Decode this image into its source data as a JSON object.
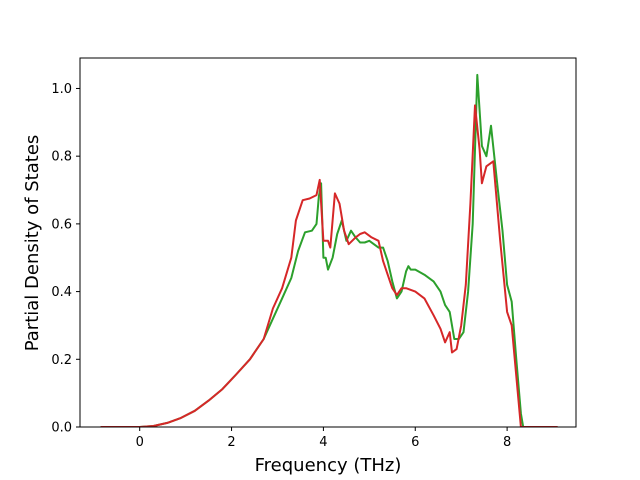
{
  "chart_data": {
    "type": "line",
    "title": "",
    "xlabel": "Frequency (THz)",
    "ylabel": "Partial Density of States",
    "xlim": [
      -1.3,
      9.5
    ],
    "ylim": [
      0.0,
      1.09
    ],
    "xticks": [
      0,
      2,
      4,
      6,
      8
    ],
    "yticks": [
      0.0,
      0.2,
      0.4,
      0.6,
      0.8,
      1.0
    ],
    "xtick_labels": [
      "0",
      "2",
      "4",
      "6",
      "8"
    ],
    "ytick_labels": [
      "0.0",
      "0.2",
      "0.4",
      "0.6",
      "0.8",
      "1.0"
    ],
    "grid": false,
    "series": [
      {
        "color": "#2ca02c",
        "points": [
          [
            -0.85,
            0.0
          ],
          [
            0.0,
            0.0
          ],
          [
            0.3,
            0.003
          ],
          [
            0.6,
            0.012
          ],
          [
            0.9,
            0.027
          ],
          [
            1.2,
            0.048
          ],
          [
            1.5,
            0.078
          ],
          [
            1.8,
            0.112
          ],
          [
            2.1,
            0.155
          ],
          [
            2.4,
            0.2
          ],
          [
            2.7,
            0.26
          ],
          [
            2.9,
            0.32
          ],
          [
            3.1,
            0.38
          ],
          [
            3.3,
            0.44
          ],
          [
            3.45,
            0.52
          ],
          [
            3.6,
            0.575
          ],
          [
            3.75,
            0.58
          ],
          [
            3.85,
            0.6
          ],
          [
            3.9,
            0.68
          ],
          [
            3.95,
            0.72
          ],
          [
            4.0,
            0.5
          ],
          [
            4.05,
            0.5
          ],
          [
            4.1,
            0.465
          ],
          [
            4.2,
            0.5
          ],
          [
            4.3,
            0.57
          ],
          [
            4.4,
            0.61
          ],
          [
            4.5,
            0.55
          ],
          [
            4.6,
            0.58
          ],
          [
            4.7,
            0.56
          ],
          [
            4.8,
            0.545
          ],
          [
            4.9,
            0.545
          ],
          [
            5.0,
            0.55
          ],
          [
            5.1,
            0.54
          ],
          [
            5.2,
            0.53
          ],
          [
            5.3,
            0.53
          ],
          [
            5.4,
            0.49
          ],
          [
            5.5,
            0.43
          ],
          [
            5.6,
            0.38
          ],
          [
            5.7,
            0.4
          ],
          [
            5.8,
            0.46
          ],
          [
            5.85,
            0.475
          ],
          [
            5.9,
            0.465
          ],
          [
            6.0,
            0.465
          ],
          [
            6.2,
            0.45
          ],
          [
            6.4,
            0.43
          ],
          [
            6.55,
            0.4
          ],
          [
            6.65,
            0.36
          ],
          [
            6.75,
            0.34
          ],
          [
            6.85,
            0.26
          ],
          [
            6.95,
            0.26
          ],
          [
            7.05,
            0.28
          ],
          [
            7.15,
            0.4
          ],
          [
            7.25,
            0.6
          ],
          [
            7.35,
            1.04
          ],
          [
            7.45,
            0.83
          ],
          [
            7.55,
            0.8
          ],
          [
            7.65,
            0.89
          ],
          [
            7.8,
            0.7
          ],
          [
            7.9,
            0.58
          ],
          [
            8.0,
            0.42
          ],
          [
            8.1,
            0.37
          ],
          [
            8.2,
            0.2
          ],
          [
            8.3,
            0.04
          ],
          [
            8.35,
            0.0
          ],
          [
            9.1,
            0.0
          ]
        ]
      },
      {
        "color": "#d62728",
        "points": [
          [
            -0.85,
            0.0
          ],
          [
            0.0,
            0.0
          ],
          [
            0.3,
            0.003
          ],
          [
            0.6,
            0.012
          ],
          [
            0.9,
            0.027
          ],
          [
            1.2,
            0.048
          ],
          [
            1.5,
            0.078
          ],
          [
            1.8,
            0.112
          ],
          [
            2.1,
            0.155
          ],
          [
            2.4,
            0.2
          ],
          [
            2.7,
            0.26
          ],
          [
            2.9,
            0.35
          ],
          [
            3.1,
            0.41
          ],
          [
            3.3,
            0.5
          ],
          [
            3.4,
            0.61
          ],
          [
            3.55,
            0.67
          ],
          [
            3.7,
            0.675
          ],
          [
            3.85,
            0.685
          ],
          [
            3.92,
            0.73
          ],
          [
            4.0,
            0.55
          ],
          [
            4.1,
            0.55
          ],
          [
            4.15,
            0.53
          ],
          [
            4.25,
            0.69
          ],
          [
            4.35,
            0.66
          ],
          [
            4.45,
            0.58
          ],
          [
            4.55,
            0.54
          ],
          [
            4.7,
            0.56
          ],
          [
            4.8,
            0.57
          ],
          [
            4.9,
            0.575
          ],
          [
            5.05,
            0.56
          ],
          [
            5.2,
            0.55
          ],
          [
            5.3,
            0.49
          ],
          [
            5.4,
            0.45
          ],
          [
            5.5,
            0.41
          ],
          [
            5.6,
            0.39
          ],
          [
            5.7,
            0.41
          ],
          [
            5.8,
            0.41
          ],
          [
            6.0,
            0.4
          ],
          [
            6.2,
            0.38
          ],
          [
            6.4,
            0.33
          ],
          [
            6.55,
            0.29
          ],
          [
            6.65,
            0.25
          ],
          [
            6.75,
            0.28
          ],
          [
            6.8,
            0.22
          ],
          [
            6.9,
            0.23
          ],
          [
            7.0,
            0.3
          ],
          [
            7.1,
            0.42
          ],
          [
            7.2,
            0.66
          ],
          [
            7.3,
            0.95
          ],
          [
            7.4,
            0.82
          ],
          [
            7.45,
            0.72
          ],
          [
            7.55,
            0.77
          ],
          [
            7.7,
            0.785
          ],
          [
            7.85,
            0.55
          ],
          [
            8.0,
            0.34
          ],
          [
            8.1,
            0.3
          ],
          [
            8.2,
            0.15
          ],
          [
            8.3,
            0.0
          ],
          [
            9.1,
            0.0
          ]
        ]
      }
    ]
  }
}
